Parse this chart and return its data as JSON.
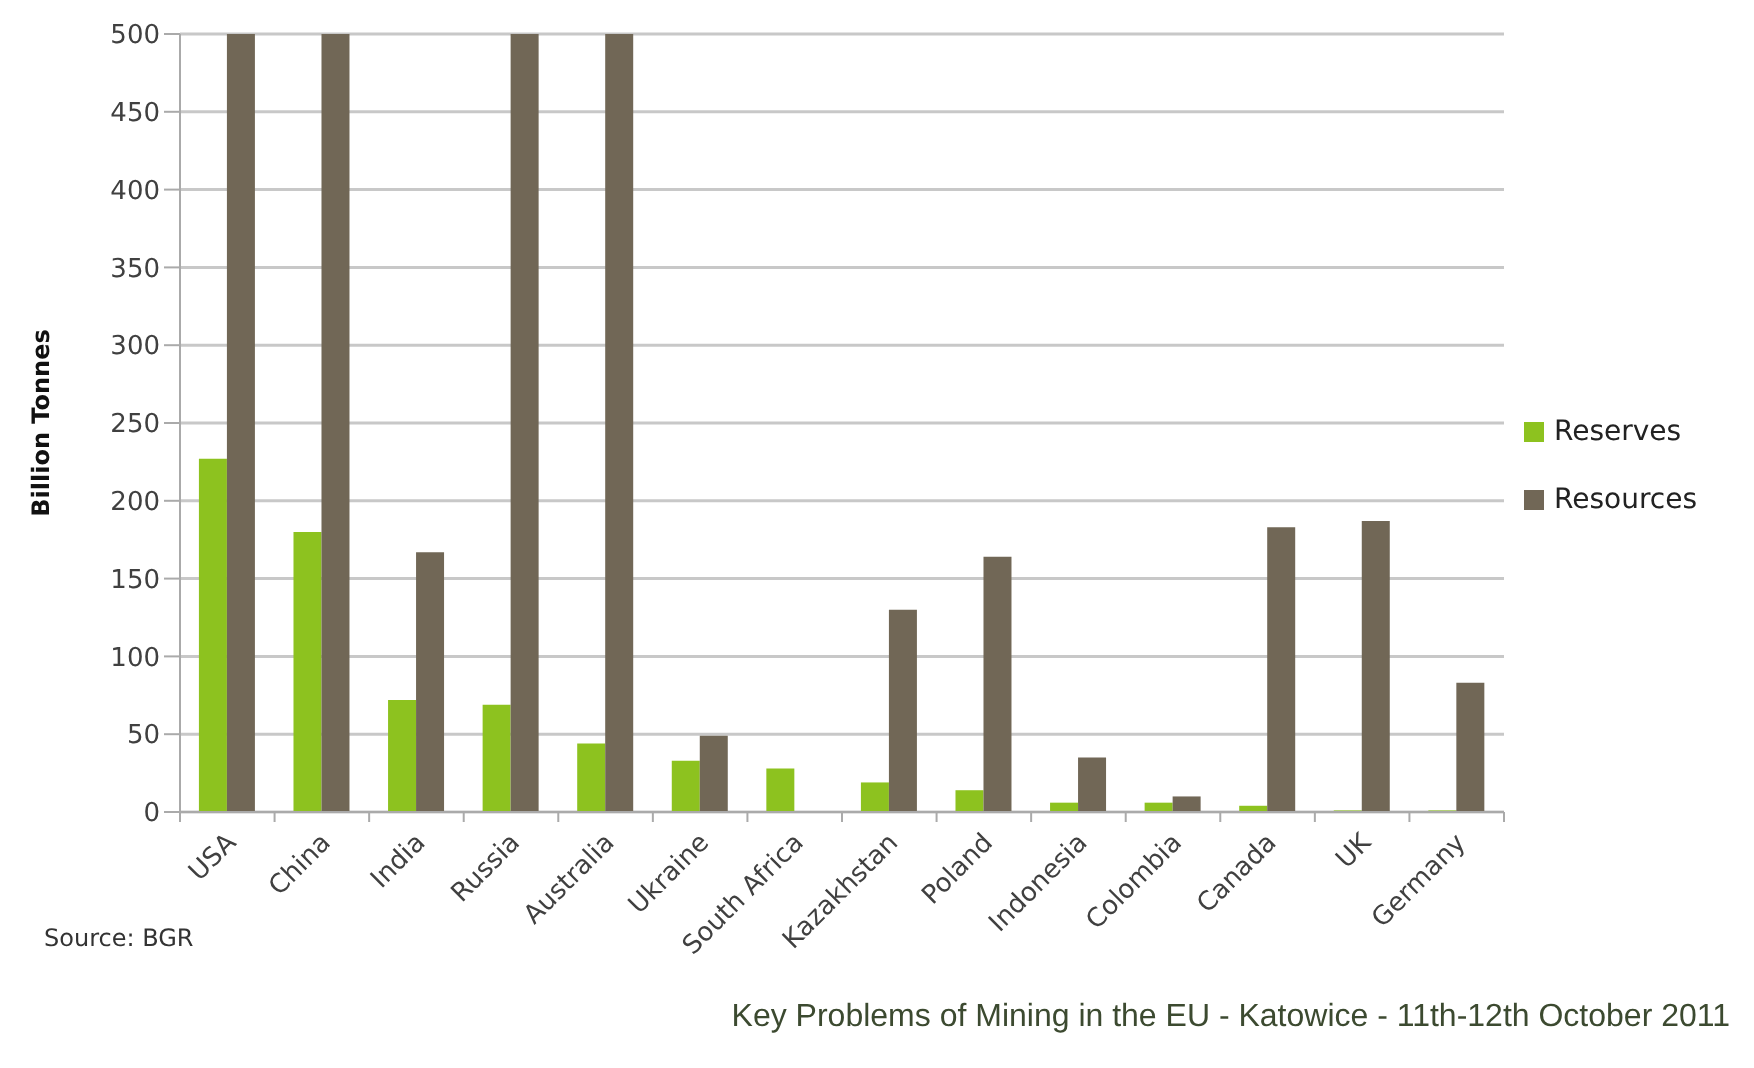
{
  "chart_data": {
    "type": "bar",
    "ylabel": "Billion Tonnes",
    "categories": [
      "USA",
      "China",
      "India",
      "Russia",
      "Australia",
      "Ukraine",
      "South Africa",
      "Kazakhstan",
      "Poland",
      "Indonesia",
      "Colombia",
      "Canada",
      "UK",
      "Germany"
    ],
    "series": [
      {
        "name": "Reserves",
        "color": "#8dc21f",
        "values": [
          227,
          180,
          72,
          69,
          44,
          33,
          28,
          19,
          14,
          6,
          6,
          4,
          1,
          1
        ]
      },
      {
        "name": "Resources",
        "color": "#716756",
        "values": [
          500,
          500,
          167,
          500,
          500,
          49,
          null,
          130,
          164,
          35,
          10,
          183,
          187,
          83
        ]
      }
    ],
    "ylim": [
      0,
      500
    ],
    "yticks": [
      0,
      50,
      100,
      150,
      200,
      250,
      300,
      350,
      400,
      450,
      500
    ],
    "grid": "y",
    "legend": "right",
    "annotations": [
      "Source: BGR",
      "Key Problems of Mining in the EU - Katowice - 11th-12th October 2011"
    ]
  }
}
